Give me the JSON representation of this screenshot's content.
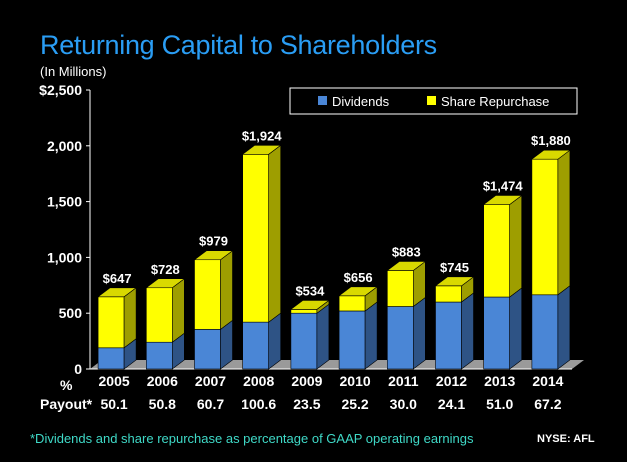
{
  "header": {
    "title": "Returning Capital to Shareholders",
    "subtitle": "(In Millions)"
  },
  "chart_data": {
    "type": "bar",
    "stacked": true,
    "categories": [
      "2005",
      "2006",
      "2007",
      "2008",
      "2009",
      "2010",
      "2011",
      "2012",
      "2013",
      "2014"
    ],
    "series": [
      {
        "name": "Dividends",
        "color": "#4a86d6",
        "values": [
          190,
          240,
          355,
          420,
          500,
          520,
          560,
          600,
          645,
          665
        ]
      },
      {
        "name": "Share Repurchase",
        "color": "#ffff00",
        "values": [
          457,
          488,
          624,
          1504,
          34,
          136,
          323,
          145,
          829,
          1215
        ]
      }
    ],
    "totals_labels": [
      "$647",
      "$728",
      "$979",
      "$1,924",
      "$534",
      "$656",
      "$883",
      "$745",
      "$1,474",
      "$1,880"
    ],
    "y_ticks": [
      "0",
      "500",
      "1,000",
      "1,500",
      "2,000",
      "$2,500"
    ],
    "ylim": [
      0,
      2500
    ],
    "legend_position": "top-right",
    "payout_label_line1": "%",
    "payout_label_line2": "Payout*",
    "payout_values": [
      "50.1",
      "50.8",
      "60.7",
      "100.6",
      "23.5",
      "25.2",
      "30.0",
      "24.1",
      "51.0",
      "67.2"
    ]
  },
  "footer": {
    "footnote": "*Dividends and share repurchase as percentage of GAAP operating earnings",
    "ticker": "NYSE: AFL"
  }
}
